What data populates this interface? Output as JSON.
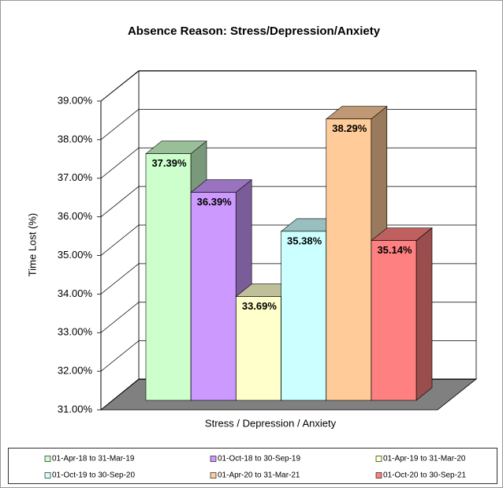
{
  "chart_data": {
    "type": "bar3d",
    "title": "Absence Reason:  Stress/Depression/Anxiety",
    "y_label": "Time Lost (%)",
    "categories": [
      "Stress / Depression / Anxiety"
    ],
    "series": [
      {
        "name": "01-Apr-18 to 31-Mar-19",
        "color": "#ccffcc",
        "values": [
          37.39
        ],
        "value_labels": [
          "37.39%"
        ]
      },
      {
        "name": "01-Oct-18 to 30-Sep-19",
        "color": "#cc99ff",
        "values": [
          36.39
        ],
        "value_labels": [
          "36.39%"
        ]
      },
      {
        "name": "01-Apr-19 to 31-Mar-20",
        "color": "#ffffcc",
        "values": [
          33.69
        ],
        "value_labels": [
          "33.69%"
        ]
      },
      {
        "name": "01-Oct-19 to 30-Sep-20",
        "color": "#ccffff",
        "values": [
          35.38
        ],
        "value_labels": [
          "35.38%"
        ]
      },
      {
        "name": "01-Apr-20 to 31-Mar-21",
        "color": "#ffcc99",
        "values": [
          38.29
        ],
        "value_labels": [
          "38.29%"
        ]
      },
      {
        "name": "01-Oct-20 to 30-Sep-21",
        "color": "#ff8080",
        "values": [
          35.14
        ],
        "value_labels": [
          "35.14%"
        ]
      }
    ],
    "ylim": [
      31,
      39
    ],
    "yticks": [
      {
        "value": 31,
        "label": "31.00%"
      },
      {
        "value": 32,
        "label": "32.00%"
      },
      {
        "value": 33,
        "label": "33.00%"
      },
      {
        "value": 34,
        "label": "34.00%"
      },
      {
        "value": 35,
        "label": "35.00%"
      },
      {
        "value": 36,
        "label": "36.00%"
      },
      {
        "value": 37,
        "label": "37.00%"
      },
      {
        "value": 38,
        "label": "38.00%"
      },
      {
        "value": 39,
        "label": "39.00%"
      }
    ],
    "grid": true
  }
}
